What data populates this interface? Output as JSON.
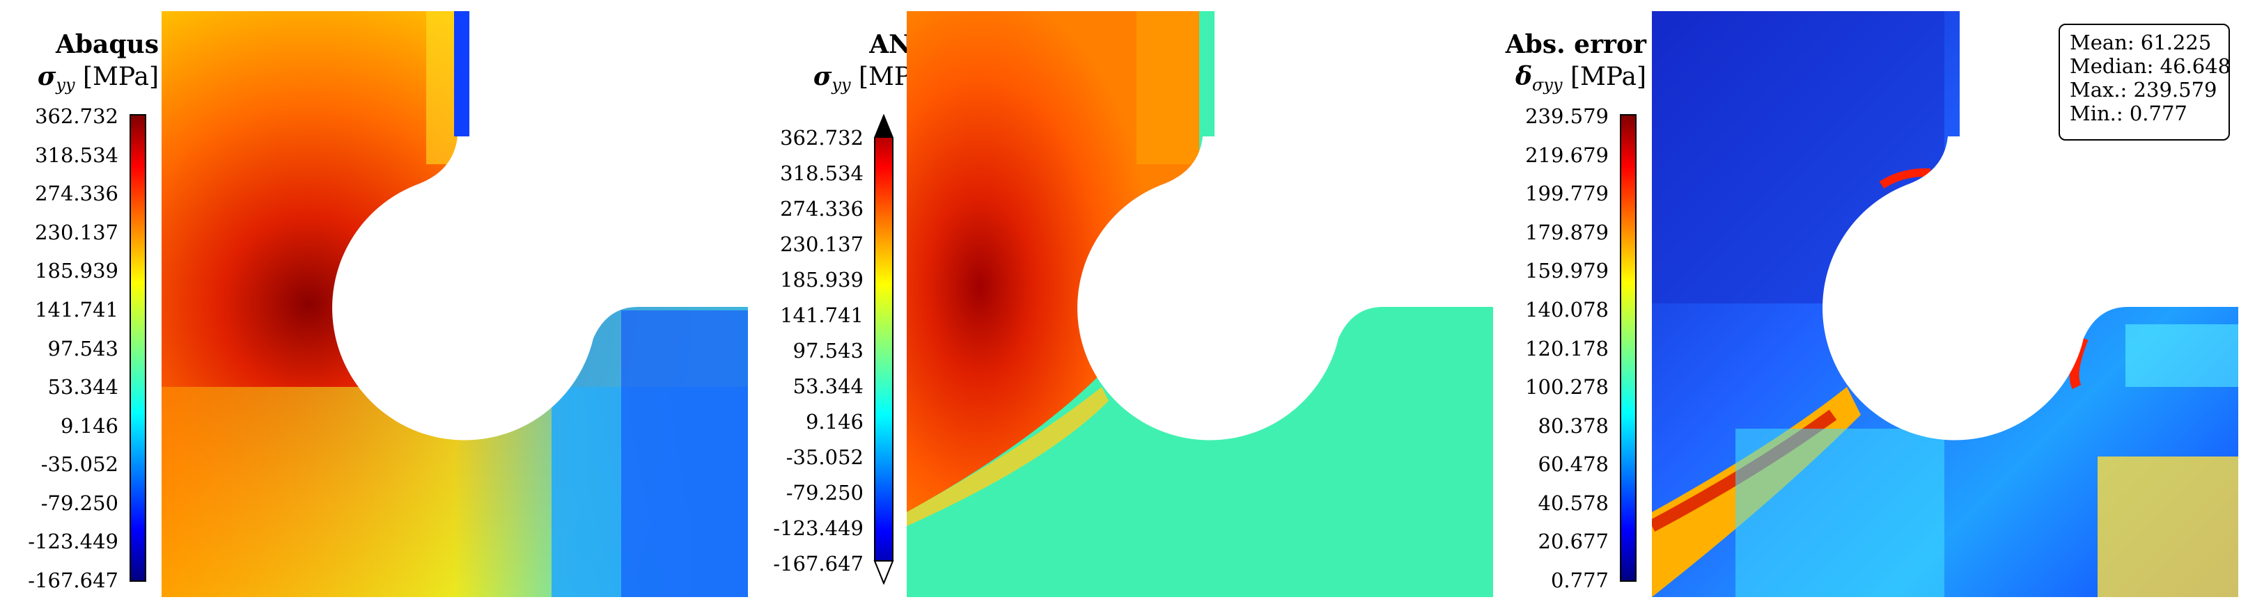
{
  "panels": [
    {
      "title": "Abaqus",
      "symbol": "σ",
      "subscript": "yy",
      "unit": "[MPa]",
      "colorbar_ticks": [
        "362.732",
        "318.534",
        "274.336",
        "230.137",
        "185.939",
        "141.741",
        "97.543",
        "53.344",
        "9.146",
        "-35.052",
        "-79.250",
        "-123.449",
        "-167.647"
      ]
    },
    {
      "title": "ANN",
      "symbol": "σ",
      "subscript": "yy",
      "unit": "[MPa]",
      "colorbar_ticks": [
        "362.732",
        "318.534",
        "274.336",
        "230.137",
        "185.939",
        "141.741",
        "97.543",
        "53.344",
        "9.146",
        "-35.052",
        "-79.250",
        "-123.449",
        "-167.647"
      ]
    },
    {
      "title": "Abs. error",
      "symbol": "δ",
      "subscript": "σyy",
      "unit": "[MPa]",
      "colorbar_ticks": [
        "239.579",
        "219.679",
        "199.779",
        "179.879",
        "159.979",
        "140.078",
        "120.178",
        "100.278",
        "80.378",
        "60.478",
        "40.578",
        "20.677",
        "0.777"
      ]
    }
  ],
  "stats": {
    "mean": "Mean: 61.225",
    "median": "Median: 46.648",
    "max": "Max.: 239.579",
    "min": "Min.: 0.777"
  },
  "colormap": "jet"
}
